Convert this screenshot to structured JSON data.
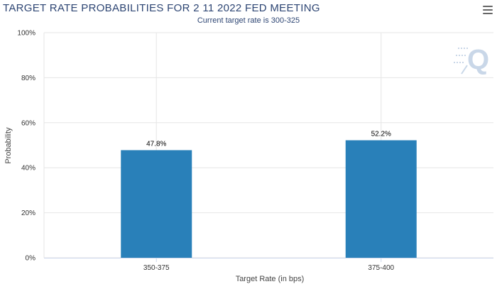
{
  "title": "TARGET RATE PROBABILITIES FOR 2 11 2022 FED MEETING",
  "subtitle": "Current target rate is 300-325",
  "menu_icon": "hamburger-menu-icon",
  "watermark_icon": "q-logo-icon",
  "colors": {
    "bar": "#2980b9",
    "grid": "#e6e6e6",
    "title": "#2d4573",
    "watermark": "#c9d7e8"
  },
  "chart_data": {
    "type": "bar",
    "title": "TARGET RATE PROBABILITIES FOR 2 11 2022 FED MEETING",
    "subtitle": "Current target rate is 300-325",
    "xlabel": "Target Rate (in bps)",
    "ylabel": "Probability",
    "categories": [
      "350-375",
      "375-400"
    ],
    "values": [
      47.8,
      52.2
    ],
    "data_labels": [
      "47.8%",
      "52.2%"
    ],
    "ylim": [
      0,
      100
    ],
    "yticks": [
      0,
      20,
      40,
      60,
      80,
      100
    ],
    "ytick_labels": [
      "0%",
      "20%",
      "40%",
      "60%",
      "80%",
      "100%"
    ],
    "grid": true,
    "legend": "none"
  }
}
